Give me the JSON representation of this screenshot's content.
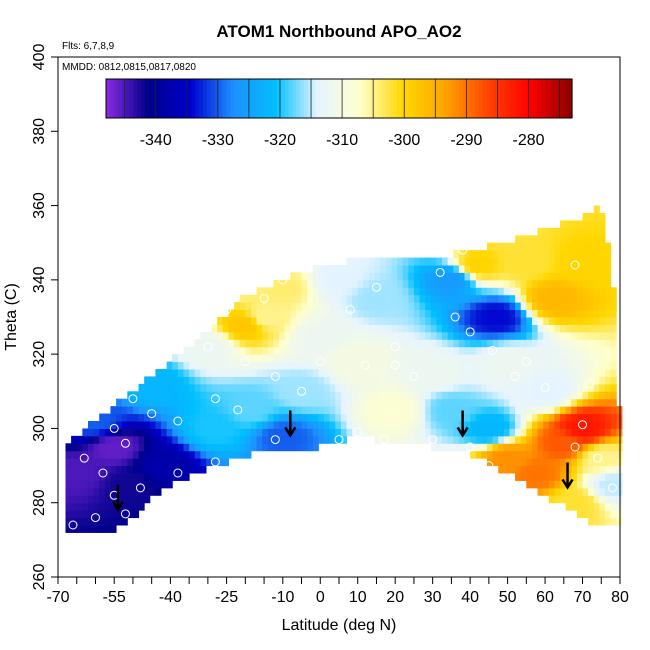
{
  "chart_data": {
    "type": "heatmap",
    "title": "ATOM1 Northbound APO_AO2",
    "notes": {
      "flights": "Flts: 6,7,8,9",
      "dates": "MMDD: 0812,0815,0817,0820"
    },
    "xlabel": "Latitude (deg N)",
    "ylabel": "Theta (C)",
    "xlim": [
      -70,
      80
    ],
    "ylim": [
      260,
      400
    ],
    "x_ticks": [
      -70,
      -55,
      -40,
      -25,
      -10,
      0,
      10,
      20,
      30,
      40,
      50,
      60,
      70,
      80
    ],
    "y_ticks": [
      260,
      280,
      300,
      320,
      340,
      360,
      380,
      400
    ],
    "colorbar": {
      "range": [
        -348,
        -273
      ],
      "ticks": [
        -340,
        -330,
        -320,
        -310,
        -300,
        -290,
        -280
      ],
      "colors": [
        "#8a2be2",
        "#00008b",
        "#0000cd",
        "#1e90ff",
        "#00bfff",
        "#e6f4ff",
        "#ffffcc",
        "#ffd700",
        "#ffa500",
        "#ff4500",
        "#ff0000",
        "#8b0000"
      ]
    },
    "lower_boundary": [
      {
        "lat": -68,
        "theta": 272
      },
      {
        "lat": -55,
        "theta": 273
      },
      {
        "lat": -50,
        "theta": 276
      },
      {
        "lat": -45,
        "theta": 282
      },
      {
        "lat": -38,
        "theta": 286
      },
      {
        "lat": -25,
        "theta": 291
      },
      {
        "lat": -15,
        "theta": 294
      },
      {
        "lat": -5,
        "theta": 295
      },
      {
        "lat": 0,
        "theta": 295
      },
      {
        "lat": 10,
        "theta": 298
      },
      {
        "lat": 20,
        "theta": 296
      },
      {
        "lat": 30,
        "theta": 295
      },
      {
        "lat": 40,
        "theta": 293
      },
      {
        "lat": 50,
        "theta": 288
      },
      {
        "lat": 60,
        "theta": 282
      },
      {
        "lat": 68,
        "theta": 277
      },
      {
        "lat": 72,
        "theta": 275
      },
      {
        "lat": 80,
        "theta": 275
      }
    ],
    "upper_boundary": [
      {
        "lat": -68,
        "theta": 296
      },
      {
        "lat": -60,
        "theta": 302
      },
      {
        "lat": -50,
        "theta": 310
      },
      {
        "lat": -40,
        "theta": 318
      },
      {
        "lat": -30,
        "theta": 326
      },
      {
        "lat": -20,
        "theta": 336
      },
      {
        "lat": -10,
        "theta": 340
      },
      {
        "lat": 0,
        "theta": 344
      },
      {
        "lat": 15,
        "theta": 346
      },
      {
        "lat": 30,
        "theta": 346
      },
      {
        "lat": 40,
        "theta": 348
      },
      {
        "lat": 50,
        "theta": 350
      },
      {
        "lat": 60,
        "theta": 354
      },
      {
        "lat": 70,
        "theta": 357
      },
      {
        "lat": 75,
        "theta": 360
      },
      {
        "lat": 78,
        "theta": 344
      },
      {
        "lat": 80,
        "theta": 300
      }
    ],
    "field_anchors": [
      {
        "lat": -65,
        "theta": 288,
        "value": -345
      },
      {
        "lat": -55,
        "theta": 295,
        "value": -346
      },
      {
        "lat": -50,
        "theta": 285,
        "value": -342
      },
      {
        "lat": -42,
        "theta": 290,
        "value": -338
      },
      {
        "lat": -60,
        "theta": 302,
        "value": -330
      },
      {
        "lat": -45,
        "theta": 312,
        "value": -322
      },
      {
        "lat": -30,
        "theta": 322,
        "value": -312
      },
      {
        "lat": -28,
        "theta": 300,
        "value": -320
      },
      {
        "lat": -18,
        "theta": 305,
        "value": -318
      },
      {
        "lat": -10,
        "theta": 298,
        "value": -330
      },
      {
        "lat": -5,
        "theta": 310,
        "value": -316
      },
      {
        "lat": 0,
        "theta": 325,
        "value": -312
      },
      {
        "lat": -15,
        "theta": 330,
        "value": -305
      },
      {
        "lat": -25,
        "theta": 340,
        "value": -306
      },
      {
        "lat": -20,
        "theta": 328,
        "value": -298
      },
      {
        "lat": -10,
        "theta": 338,
        "value": -304
      },
      {
        "lat": 5,
        "theta": 340,
        "value": -314
      },
      {
        "lat": 15,
        "theta": 335,
        "value": -316
      },
      {
        "lat": 10,
        "theta": 318,
        "value": -310
      },
      {
        "lat": 20,
        "theta": 305,
        "value": -308
      },
      {
        "lat": 30,
        "theta": 315,
        "value": -312
      },
      {
        "lat": 35,
        "theta": 340,
        "value": -326
      },
      {
        "lat": 47,
        "theta": 330,
        "value": -334
      },
      {
        "lat": 42,
        "theta": 344,
        "value": -300
      },
      {
        "lat": 55,
        "theta": 345,
        "value": -302
      },
      {
        "lat": 62,
        "theta": 335,
        "value": -296
      },
      {
        "lat": 70,
        "theta": 345,
        "value": -300
      },
      {
        "lat": 50,
        "theta": 318,
        "value": -312
      },
      {
        "lat": 60,
        "theta": 310,
        "value": -314
      },
      {
        "lat": 35,
        "theta": 305,
        "value": -318
      },
      {
        "lat": 45,
        "theta": 300,
        "value": -322
      },
      {
        "lat": 50,
        "theta": 292,
        "value": -292
      },
      {
        "lat": 58,
        "theta": 288,
        "value": -290
      },
      {
        "lat": 65,
        "theta": 296,
        "value": -288
      },
      {
        "lat": 70,
        "theta": 300,
        "value": -282
      },
      {
        "lat": 75,
        "theta": 292,
        "value": -305
      },
      {
        "lat": 78,
        "theta": 285,
        "value": -315
      },
      {
        "lat": 68,
        "theta": 280,
        "value": -302
      }
    ],
    "sample_points": [
      {
        "lat": -63,
        "theta": 292
      },
      {
        "lat": -58,
        "theta": 288
      },
      {
        "lat": -55,
        "theta": 282
      },
      {
        "lat": -52,
        "theta": 277
      },
      {
        "lat": -60,
        "theta": 276
      },
      {
        "lat": -66,
        "theta": 274
      },
      {
        "lat": -48,
        "theta": 284
      },
      {
        "lat": -52,
        "theta": 296
      },
      {
        "lat": -55,
        "theta": 300
      },
      {
        "lat": -50,
        "theta": 308
      },
      {
        "lat": -45,
        "theta": 304
      },
      {
        "lat": -38,
        "theta": 302
      },
      {
        "lat": -38,
        "theta": 288
      },
      {
        "lat": -28,
        "theta": 291
      },
      {
        "lat": -28,
        "theta": 308
      },
      {
        "lat": -22,
        "theta": 305
      },
      {
        "lat": -12,
        "theta": 297
      },
      {
        "lat": -5,
        "theta": 310
      },
      {
        "lat": 5,
        "theta": 297
      },
      {
        "lat": 10,
        "theta": 299
      },
      {
        "lat": 17,
        "theta": 297
      },
      {
        "lat": 12,
        "theta": 317
      },
      {
        "lat": 0,
        "theta": 318
      },
      {
        "lat": -12,
        "theta": 314
      },
      {
        "lat": -20,
        "theta": 318
      },
      {
        "lat": -30,
        "theta": 322
      },
      {
        "lat": -25,
        "theta": 332
      },
      {
        "lat": -15,
        "theta": 335
      },
      {
        "lat": -10,
        "theta": 340
      },
      {
        "lat": 0,
        "theta": 345
      },
      {
        "lat": 8,
        "theta": 332
      },
      {
        "lat": 15,
        "theta": 338
      },
      {
        "lat": 20,
        "theta": 317
      },
      {
        "lat": 25,
        "theta": 314
      },
      {
        "lat": 32,
        "theta": 342
      },
      {
        "lat": 38,
        "theta": 348
      },
      {
        "lat": 36,
        "theta": 330
      },
      {
        "lat": 40,
        "theta": 326
      },
      {
        "lat": 46,
        "theta": 321
      },
      {
        "lat": 52,
        "theta": 314
      },
      {
        "lat": 55,
        "theta": 318
      },
      {
        "lat": 60,
        "theta": 311
      },
      {
        "lat": 68,
        "theta": 344
      },
      {
        "lat": 72,
        "theta": 312
      },
      {
        "lat": 70,
        "theta": 301
      },
      {
        "lat": 68,
        "theta": 295
      },
      {
        "lat": 74,
        "theta": 292
      },
      {
        "lat": 78,
        "theta": 284
      },
      {
        "lat": 30,
        "theta": 297
      },
      {
        "lat": 40,
        "theta": 295
      },
      {
        "lat": 45,
        "theta": 290
      },
      {
        "lat": 20,
        "theta": 322
      }
    ],
    "arrows": [
      {
        "lat": -54,
        "theta": 280
      },
      {
        "lat": -8,
        "theta": 300
      },
      {
        "lat": 38,
        "theta": 300
      },
      {
        "lat": 66,
        "theta": 286
      }
    ]
  }
}
